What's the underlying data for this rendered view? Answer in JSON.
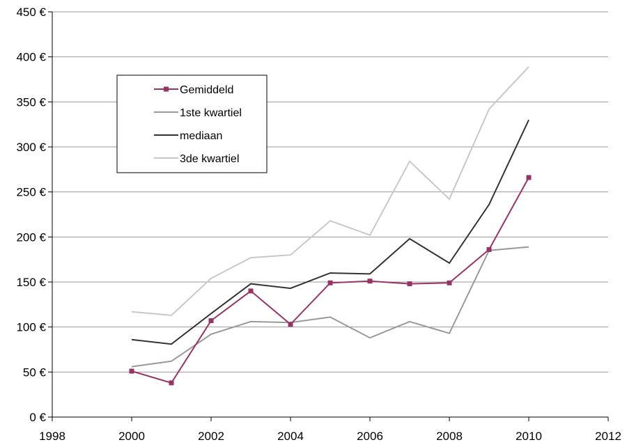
{
  "chart_data": {
    "type": "line",
    "title": "",
    "xlabel": "",
    "ylabel": "",
    "xlim": [
      1998,
      2012
    ],
    "ylim": [
      0,
      450
    ],
    "x_ticks": [
      1998,
      2000,
      2002,
      2004,
      2006,
      2008,
      2010,
      2012
    ],
    "x_tick_labels": [
      "1998",
      "2000",
      "2002",
      "2004",
      "2006",
      "2008",
      "2010",
      "2012"
    ],
    "y_ticks": [
      0,
      50,
      100,
      150,
      200,
      250,
      300,
      350,
      400,
      450
    ],
    "y_tick_labels": [
      "0 €",
      "50 €",
      "100 €",
      "150 €",
      "200 €",
      "250 €",
      "300 €",
      "350 €",
      "400 €",
      "450 €"
    ],
    "grid": "horizontal",
    "legend_position": "top-left",
    "x": [
      2000,
      2001,
      2002,
      2003,
      2004,
      2005,
      2006,
      2007,
      2008,
      2009,
      2010
    ],
    "series": [
      {
        "name": "Gemiddeld",
        "color": "#993366",
        "marker": "square",
        "values": [
          51,
          38,
          107,
          140,
          103,
          149,
          151,
          148,
          149,
          186,
          266
        ]
      },
      {
        "name": "1ste kwartiel",
        "color": "#999999",
        "marker": "none",
        "values": [
          56,
          62,
          92,
          106,
          105,
          111,
          88,
          106,
          93,
          185,
          189
        ]
      },
      {
        "name": "mediaan",
        "color": "#333333",
        "marker": "none",
        "values": [
          86,
          81,
          115,
          148,
          143,
          160,
          159,
          198,
          171,
          236,
          330
        ]
      },
      {
        "name": "3de kwartiel",
        "color": "#c8c8c8",
        "marker": "none",
        "values": [
          117,
          113,
          154,
          177,
          180,
          218,
          202,
          284,
          242,
          342,
          389
        ]
      }
    ]
  }
}
